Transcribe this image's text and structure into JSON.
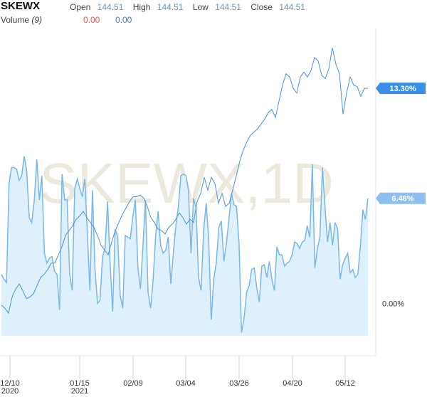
{
  "header": {
    "symbol": "SKEWX",
    "open_label": "Open",
    "open_value": "144.51",
    "high_label": "High",
    "high_value": "144.51",
    "low_label": "Low",
    "low_value": "144.51",
    "close_label": "Close",
    "close_value": "144.51",
    "volume_label": "Volume",
    "volume_period": "(9)",
    "volume_value_1": "0.00",
    "volume_value_2": "0.00"
  },
  "colors": {
    "line": "#4a90e2",
    "area_fill": "#dff0fd",
    "area_line": "#7ab6e8",
    "badge_primary": "#3b8fe8",
    "badge_secondary": "#8cc0f0",
    "watermark": "#ece8dc"
  },
  "chart_data": {
    "type": "line",
    "watermark": "SKEWX,1D",
    "x_tick_labels": [
      "12/10\n2020",
      "01/15\n2021",
      "02/09",
      "03/04",
      "03/26",
      "04/20",
      "05/12"
    ],
    "y_tick_labels": [
      "0.00%"
    ],
    "ylim": [
      -2.0,
      17.0
    ],
    "badges": [
      {
        "series": "price",
        "label": "13.30%"
      },
      {
        "series": "volume",
        "label": "6.48%"
      }
    ],
    "series": [
      {
        "id": "price",
        "values": [
          -0.1,
          -0.3,
          -0.6,
          0.4,
          0.9,
          1.2,
          0.8,
          0.3,
          0.4,
          0.6,
          1.1,
          1.6,
          1.8,
          2.1,
          2.5,
          2.5,
          3.0,
          3.5,
          4.2,
          4.5,
          4.8,
          5.2,
          5.4,
          5.7,
          5.3,
          5.0,
          4.7,
          4.2,
          3.6,
          3.3,
          3.0,
          3.8,
          4.5,
          5.0,
          5.5,
          5.9,
          6.3,
          6.6,
          6.6,
          6.7,
          6.5,
          6.0,
          5.3,
          5.0,
          4.6,
          4.5,
          4.3,
          4.7,
          4.9,
          5.2,
          5.6,
          5.3,
          4.9,
          5.2,
          5.0,
          6.3,
          6.8,
          7.8,
          7.0,
          7.8,
          7.4,
          6.2,
          6.8,
          6.0,
          6.2,
          7.0,
          7.9,
          8.8,
          9.5,
          10.0,
          10.4,
          10.6,
          10.8,
          11.1,
          11.4,
          11.8,
          12.0,
          11.5,
          12.5,
          13.5,
          14.2,
          14.0,
          13.3,
          13.0,
          14.0,
          14.3,
          14.0,
          14.4,
          15.2,
          15.0,
          14.1,
          13.9,
          14.5,
          15.8,
          14.8,
          14.2,
          11.7,
          13.0,
          14.0,
          13.5,
          13.4,
          12.8,
          13.3,
          13.3
        ]
      },
      {
        "id": "volume",
        "values": [
          1.8,
          1.5,
          1.3,
          7.4,
          8.4,
          8.4,
          8.3,
          7.6,
          7.9,
          9.1,
          8.2,
          5.3,
          5.0,
          6.4,
          8.9,
          6.4,
          7.9,
          3.1,
          2.5,
          2.8,
          2.9,
          2.0,
          1.8,
          -0.4,
          8.0,
          6.4,
          6.4,
          1.8,
          0.8,
          7.1,
          7.7,
          7.1,
          6.6,
          7.7,
          4.3,
          0.8,
          7.0,
          2.2,
          0.0,
          0.2,
          2.9,
          3.4,
          6.3,
          2.5,
          -0.5,
          4.6,
          4.1,
          0.5,
          -0.3,
          4.2,
          4.1,
          4.0,
          5.4,
          6.4,
          2.2,
          0.9,
          3.6,
          6.4,
          0.7,
          -0.3,
          1.4,
          4.2,
          5.7,
          3.6,
          3.1,
          3.3,
          4.1,
          1.2,
          3.1,
          4.8,
          6.0,
          7.9,
          8.0,
          7.9,
          7.0,
          3.1,
          6.5,
          5.9,
          1.6,
          0.8,
          4.5,
          6.2,
          4.0,
          -1.0,
          1.5,
          2.5,
          4.7,
          5.1,
          2.6,
          3.7,
          5.2,
          6.8,
          6.1,
          6.0,
          3.7,
          -1.8,
          -0.9,
          0.7,
          1.1,
          2.1,
          2.2,
          1.0,
          0.1,
          2.3,
          2.4,
          1.6,
          2.6,
          1.5,
          0.8,
          3.5,
          3.0,
          3.0,
          2.3,
          2.5,
          2.6,
          3.0,
          3.8,
          3.7,
          3.4,
          3.8,
          3.9,
          4.8,
          4.1,
          8.6,
          2.2,
          3.4,
          4.1,
          8.4,
          6.0,
          3.8,
          5.0,
          3.6,
          5.0,
          4.6,
          1.5,
          2.4,
          2.8,
          3.1,
          1.9,
          2.1,
          1.6,
          1.8,
          3.5,
          5.8,
          5.2,
          6.5
        ]
      }
    ]
  }
}
